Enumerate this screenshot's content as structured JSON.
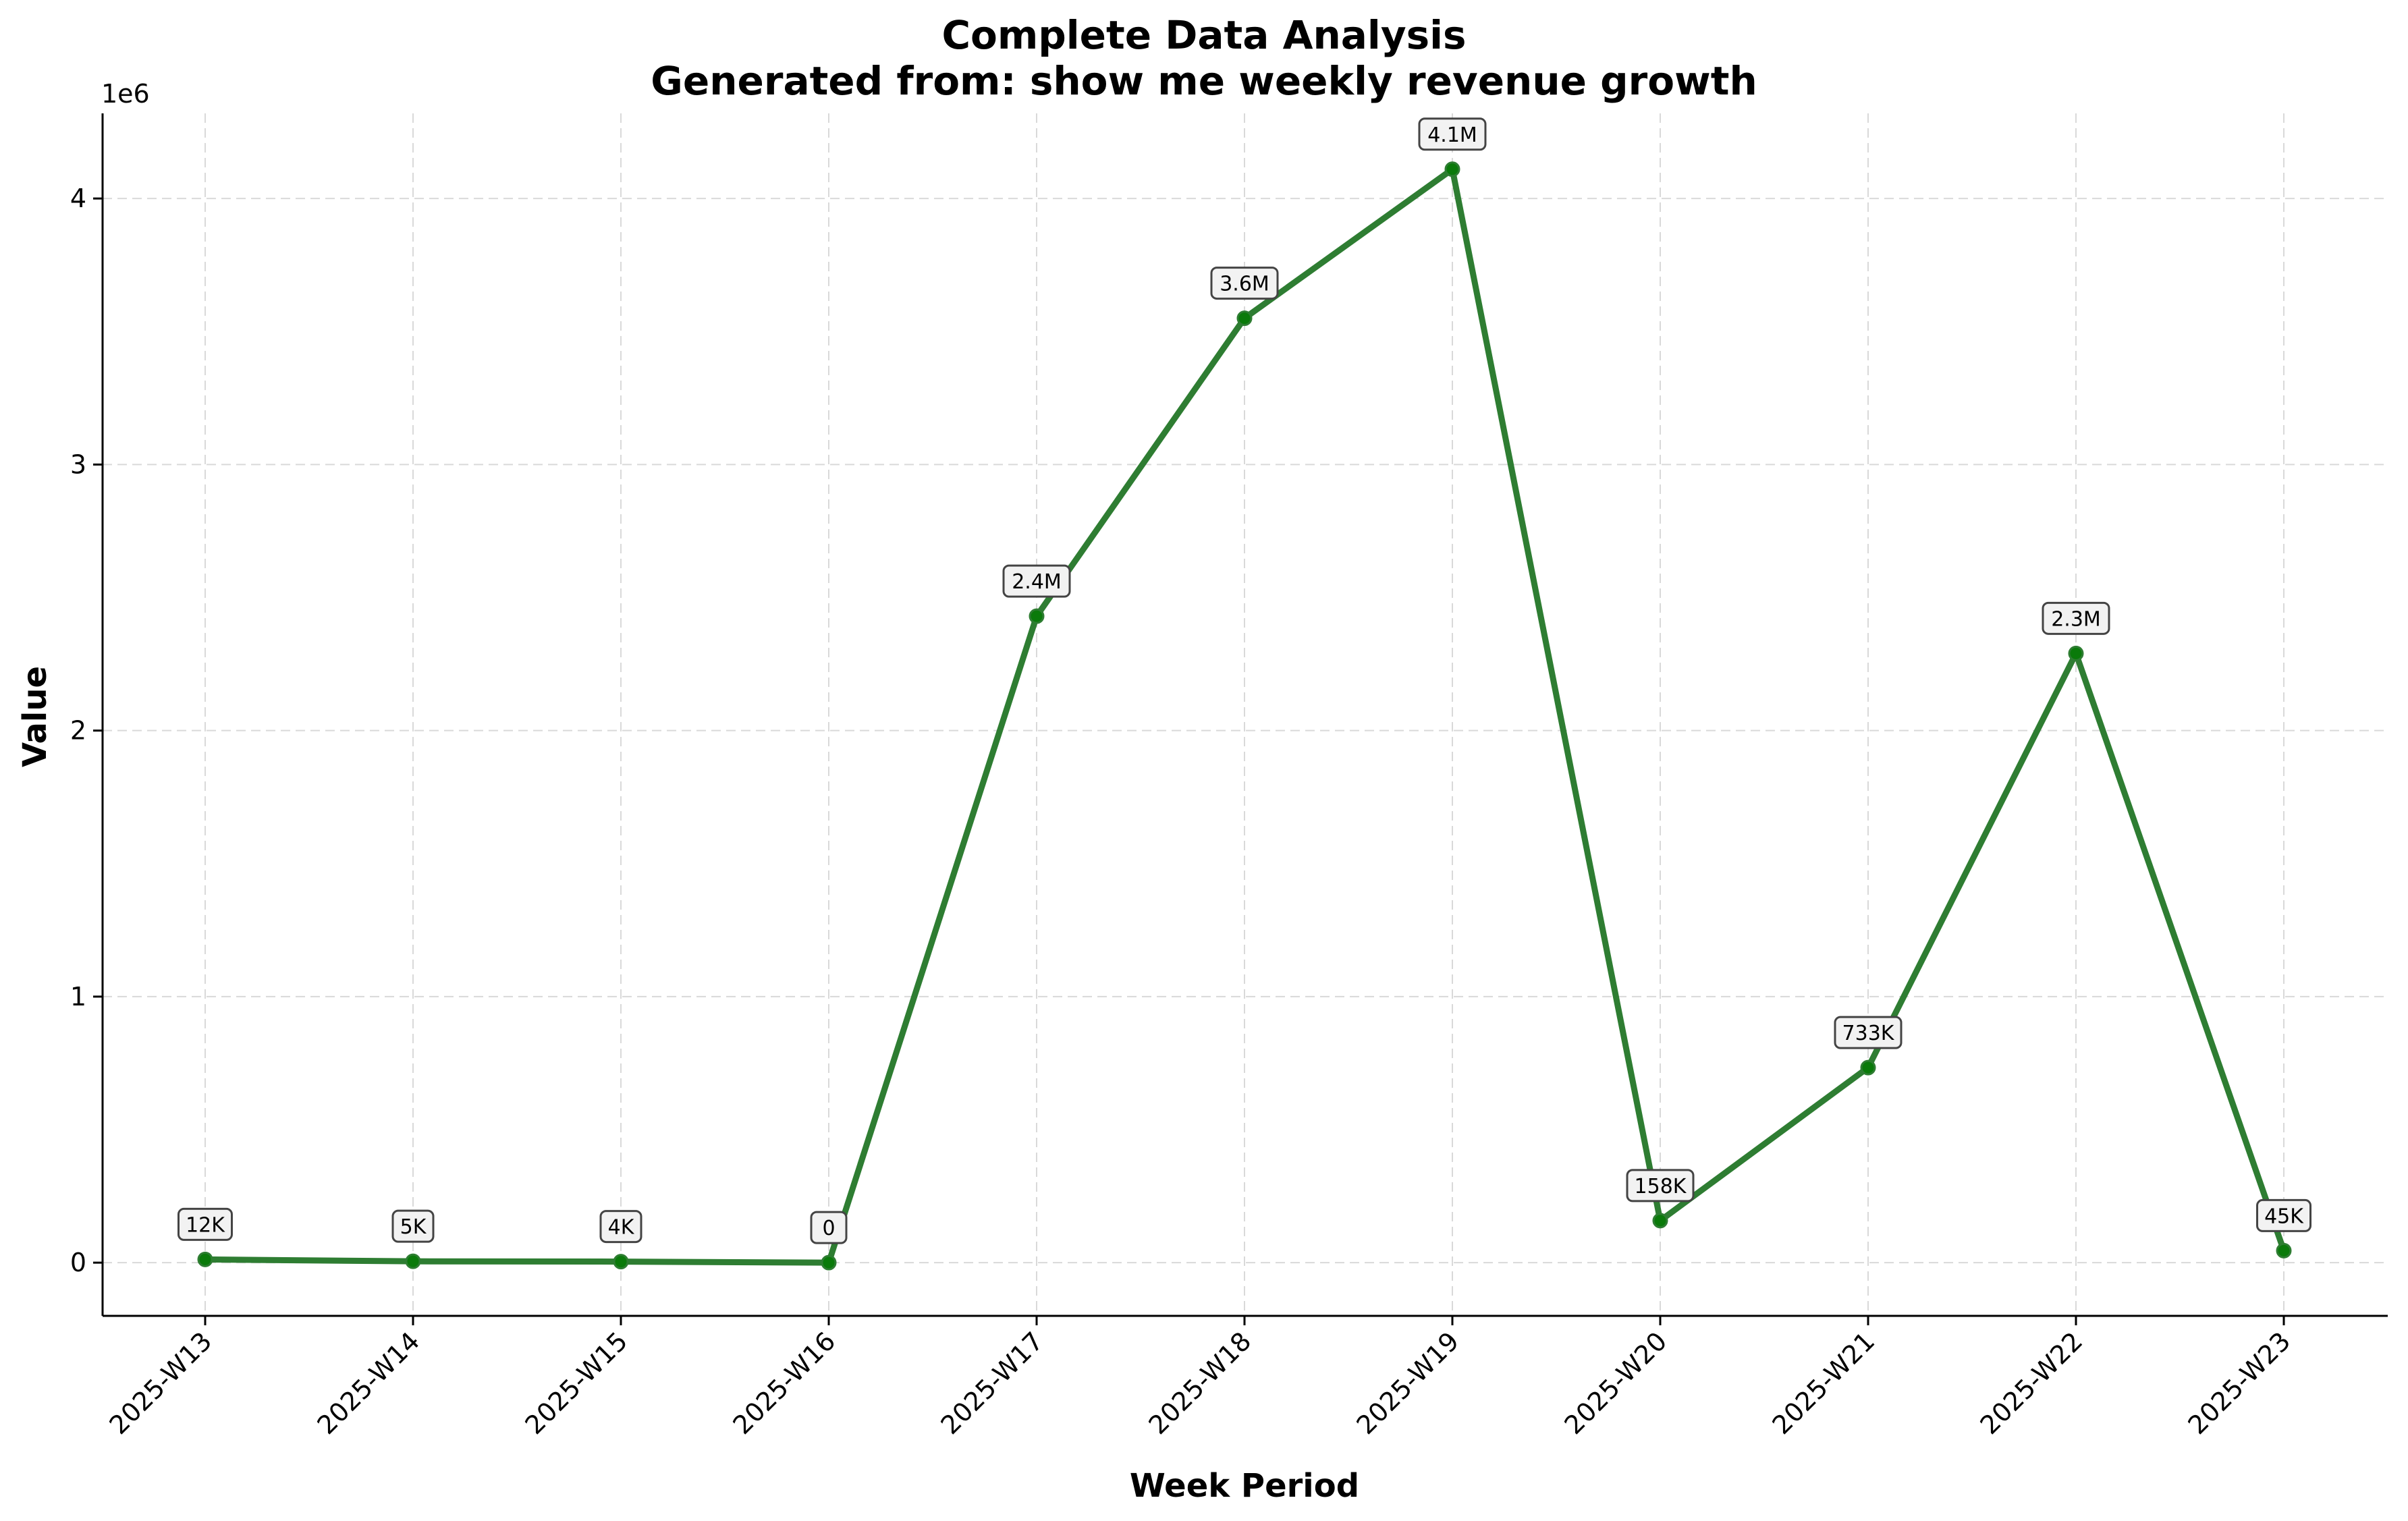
{
  "chart_data": {
    "type": "line",
    "title_line1": "Complete Data Analysis",
    "title_line2": "Generated from: show me weekly revenue growth",
    "xlabel": "Week Period",
    "ylabel": "Value",
    "y_offset_label": "1e6",
    "categories": [
      "2025-W13",
      "2025-W14",
      "2025-W15",
      "2025-W16",
      "2025-W17",
      "2025-W18",
      "2025-W19",
      "2025-W20",
      "2025-W21",
      "2025-W22",
      "2025-W23"
    ],
    "series": [
      {
        "values": [
          12000,
          5000,
          4000,
          0,
          2430000,
          3550000,
          4110000,
          158000,
          733000,
          2290000,
          45000
        ],
        "color": "#2e7d32",
        "marker_color": "#0a7a0a"
      }
    ],
    "data_labels": [
      "12K",
      "5K",
      "4K",
      "0",
      "2.4M",
      "3.6M",
      "4.1M",
      "158K",
      "733K",
      "2.3M",
      "45K"
    ],
    "ylim": [
      -200000,
      4320000
    ],
    "yticks": [
      0,
      1000000,
      2000000,
      3000000,
      4000000
    ],
    "ytick_labels": [
      "0",
      "1",
      "2",
      "3",
      "4"
    ],
    "grid": true,
    "legend": "none"
  }
}
